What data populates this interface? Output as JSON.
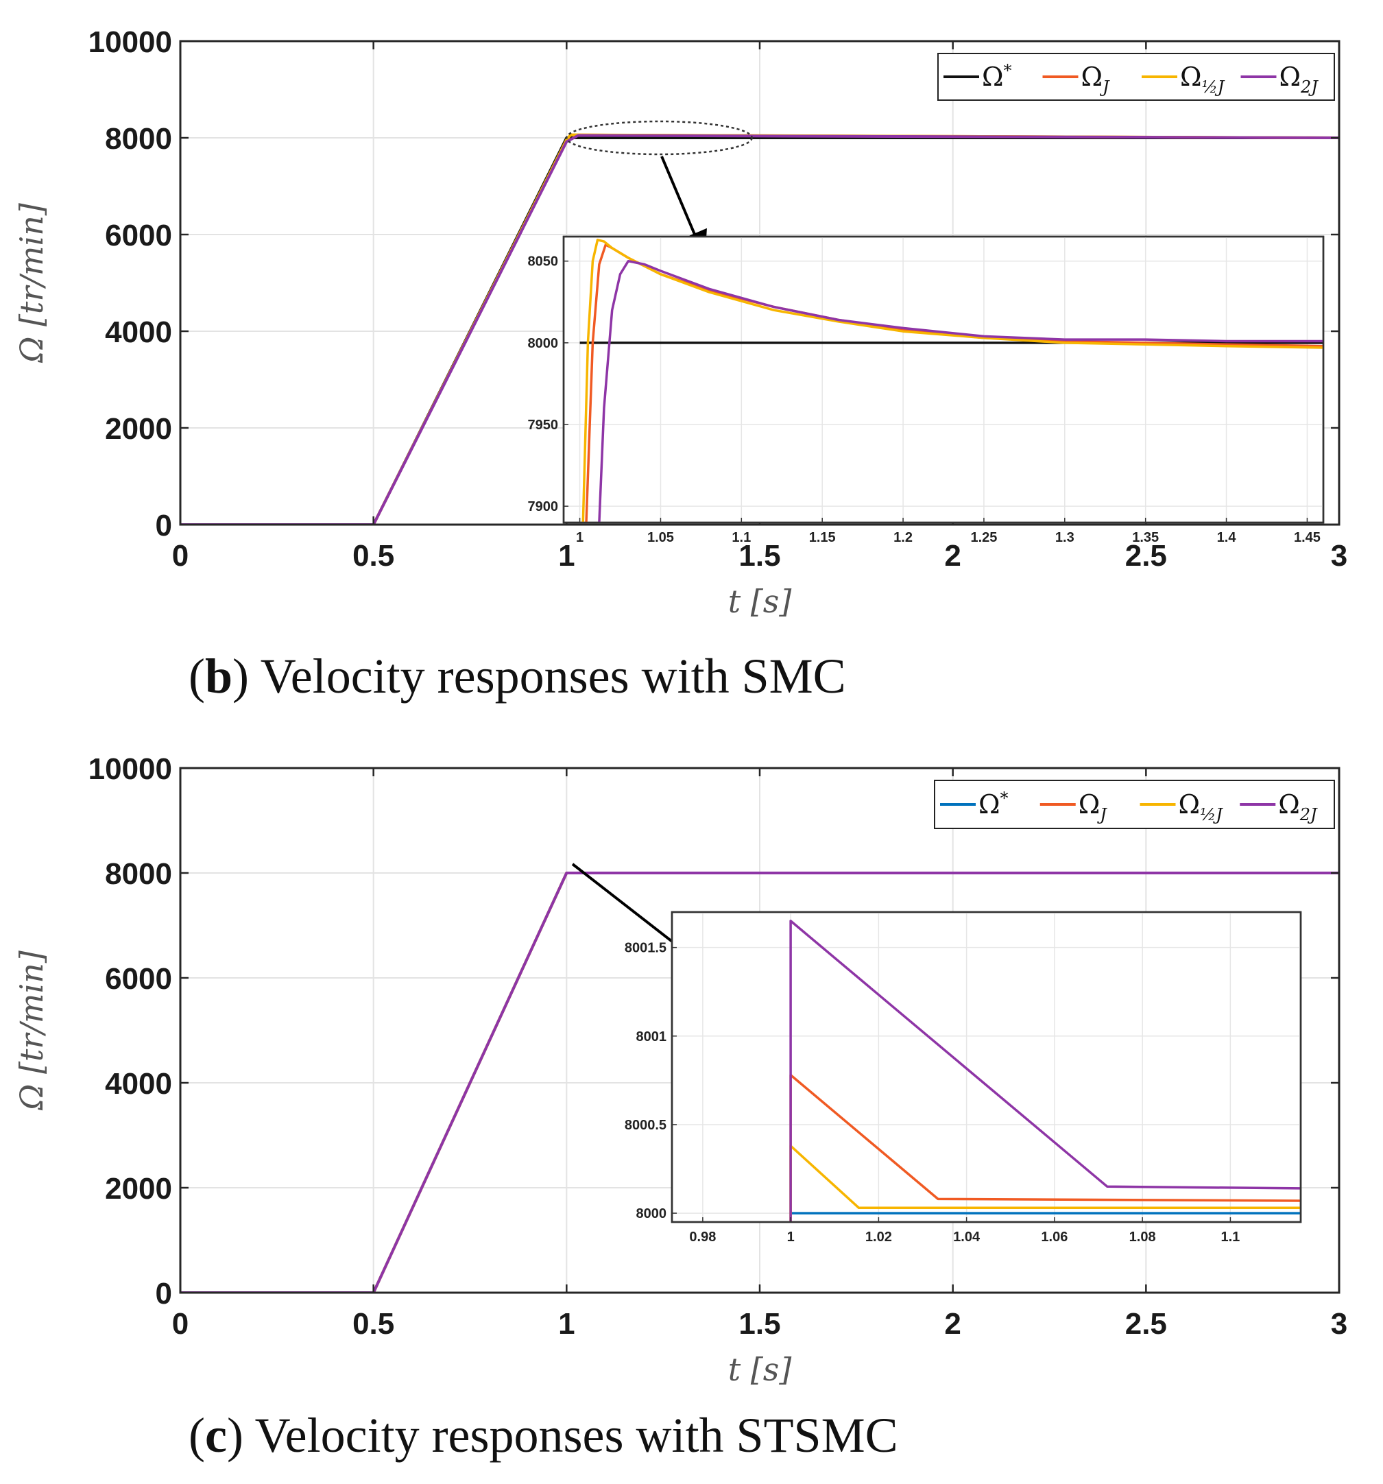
{
  "figure": {
    "captions": [
      {
        "letter": "b",
        "text": "Velocity responses with SMC"
      },
      {
        "letter": "c",
        "text": "Velocity responses with STSMC"
      }
    ]
  },
  "chart_data": [
    {
      "id": "b",
      "type": "line",
      "xlabel": "t [s]",
      "ylabel": "Ω [tr/min]",
      "xlim": [
        0,
        3
      ],
      "ylim": [
        0,
        10000
      ],
      "xticks": [
        0,
        0.5,
        1,
        1.5,
        2,
        2.5,
        3
      ],
      "xtick_labels": [
        "0",
        "0.5",
        "1",
        "1.5",
        "2",
        "2.5",
        "3"
      ],
      "yticks": [
        0,
        2000,
        4000,
        6000,
        8000,
        10000
      ],
      "ytick_labels": [
        "0",
        "2000",
        "4000",
        "6000",
        "8000",
        "10000"
      ],
      "grid": true,
      "legend_position": "top-right",
      "series": [
        {
          "name": "Ω*",
          "label_main": "Ω",
          "label_sup": "*",
          "label_sub": "",
          "color": "#111111",
          "x": [
            0,
            0.5,
            1,
            3
          ],
          "y": [
            0,
            0,
            8000,
            8000
          ]
        },
        {
          "name": "Ω_J",
          "label_main": "Ω",
          "label_sup": "",
          "label_sub": "J",
          "color": "#f05a23",
          "x": [
            0,
            0.5,
            1,
            1.01,
            3
          ],
          "y": [
            0,
            0,
            7950,
            8060,
            8000
          ]
        },
        {
          "name": "Ω_½J",
          "label_main": "Ω",
          "label_sup": "",
          "label_sub": "½J",
          "color": "#f7b500",
          "x": [
            0,
            0.5,
            1,
            1.01,
            3
          ],
          "y": [
            0,
            0,
            7960,
            8062,
            8000
          ]
        },
        {
          "name": "Ω_2J",
          "label_main": "Ω",
          "label_sup": "",
          "label_sub": "2J",
          "color": "#8e35a6",
          "x": [
            0,
            0.5,
            1,
            1.03,
            3
          ],
          "y": [
            0,
            0,
            7920,
            8050,
            8000
          ]
        }
      ],
      "inset": {
        "xlim": [
          0.99,
          1.46
        ],
        "ylim": [
          7890,
          8065
        ],
        "xticks": [
          1,
          1.05,
          1.1,
          1.15,
          1.2,
          1.25,
          1.3,
          1.35,
          1.4,
          1.45
        ],
        "xtick_labels": [
          "1",
          "1.05",
          "1.1",
          "1.15",
          "1.2",
          "1.25",
          "1.3",
          "1.35",
          "1.4",
          "1.45"
        ],
        "yticks": [
          7900,
          7950,
          8000,
          8050
        ],
        "ytick_labels": [
          "7900",
          "7950",
          "8000",
          "8050"
        ],
        "zoom_region": {
          "x": [
            1.0,
            1.48
          ],
          "y": [
            8000,
            8060
          ]
        },
        "series": [
          {
            "name": "Ω*",
            "color": "#111111",
            "x": [
              1.0,
              1.46
            ],
            "y": [
              8000,
              8000
            ]
          },
          {
            "name": "Ω_J",
            "color": "#f05a23",
            "x": [
              1.004,
              1.008,
              1.012,
              1.016,
              1.02,
              1.03,
              1.05,
              1.08,
              1.12,
              1.16,
              1.2,
              1.25,
              1.3,
              1.35,
              1.4,
              1.46
            ],
            "y": [
              7890,
              8000,
              8048,
              8060,
              8058,
              8052,
              8042,
              8032,
              8022,
              8014,
              8008,
              8003,
              8001,
              8000,
              7999,
              7998
            ]
          },
          {
            "name": "Ω_½J",
            "color": "#f7b500",
            "x": [
              1.002,
              1.005,
              1.008,
              1.011,
              1.015,
              1.02,
              1.03,
              1.05,
              1.08,
              1.12,
              1.16,
              1.2,
              1.25,
              1.3,
              1.35,
              1.4,
              1.46
            ],
            "y": [
              7890,
              8000,
              8050,
              8063,
              8062,
              8058,
              8052,
              8042,
              8031,
              8020,
              8013,
              8007,
              8003,
              8000,
              7999,
              7998,
              7997
            ]
          },
          {
            "name": "Ω_2J",
            "color": "#8e35a6",
            "x": [
              1.012,
              1.015,
              1.02,
              1.025,
              1.03,
              1.04,
              1.05,
              1.08,
              1.12,
              1.16,
              1.2,
              1.25,
              1.3,
              1.35,
              1.4,
              1.46
            ],
            "y": [
              7890,
              7960,
              8020,
              8042,
              8050,
              8048,
              8044,
              8033,
              8022,
              8014,
              8009,
              8004,
              8002,
              8002,
              8001,
              8001
            ]
          }
        ]
      }
    },
    {
      "id": "c",
      "type": "line",
      "xlabel": "t [s]",
      "ylabel": "Ω [tr/min]",
      "xlim": [
        0,
        3
      ],
      "ylim": [
        0,
        10000
      ],
      "xticks": [
        0,
        0.5,
        1,
        1.5,
        2,
        2.5,
        3
      ],
      "xtick_labels": [
        "0",
        "0.5",
        "1",
        "1.5",
        "2",
        "2.5",
        "3"
      ],
      "yticks": [
        0,
        2000,
        4000,
        6000,
        8000,
        10000
      ],
      "ytick_labels": [
        "0",
        "2000",
        "4000",
        "6000",
        "8000",
        "10000"
      ],
      "grid": true,
      "legend_position": "top-right",
      "series": [
        {
          "name": "Ω*",
          "label_main": "Ω",
          "label_sup": "*",
          "label_sub": "",
          "color": "#0072bd",
          "x": [
            0,
            0.5,
            1,
            3
          ],
          "y": [
            0,
            0,
            8000,
            8000
          ]
        },
        {
          "name": "Ω_J",
          "label_main": "Ω",
          "label_sup": "",
          "label_sub": "J",
          "color": "#f05a23",
          "x": [
            0,
            0.5,
            1,
            3
          ],
          "y": [
            0,
            0,
            8000,
            8000
          ]
        },
        {
          "name": "Ω_½J",
          "label_main": "Ω",
          "label_sup": "",
          "label_sub": "½J",
          "color": "#f7b500",
          "x": [
            0,
            0.5,
            1,
            3
          ],
          "y": [
            0,
            0,
            8000,
            8000
          ]
        },
        {
          "name": "Ω_2J",
          "label_main": "Ω",
          "label_sup": "",
          "label_sub": "2J",
          "color": "#8e35a6",
          "x": [
            0,
            0.5,
            1,
            3
          ],
          "y": [
            0,
            0,
            8000,
            8000
          ]
        }
      ],
      "inset": {
        "xlim": [
          0.973,
          1.116
        ],
        "ylim": [
          7999.95,
          8001.7
        ],
        "xticks": [
          0.98,
          1,
          1.02,
          1.04,
          1.06,
          1.08,
          1.1
        ],
        "xtick_labels": [
          "0.98",
          "1",
          "1.02",
          "1.04",
          "1.06",
          "1.08",
          "1.1"
        ],
        "yticks": [
          8000,
          8000.5,
          8001,
          8001.5
        ],
        "ytick_labels": [
          "8000",
          "8000.5",
          "8001",
          "8001.5"
        ],
        "series": [
          {
            "name": "Ω*",
            "color": "#0072bd",
            "x": [
              1.0,
              1.116
            ],
            "y": [
              8000,
              8000
            ]
          },
          {
            "name": "Ω_J",
            "color": "#f05a23",
            "x": [
              1.0,
              1.0,
              1.0335,
              1.116
            ],
            "y": [
              7999.95,
              8000.78,
              8000.08,
              8000.07
            ]
          },
          {
            "name": "Ω_½J",
            "color": "#f7b500",
            "x": [
              1.0,
              1.0,
              1.0155,
              1.116
            ],
            "y": [
              7999.95,
              8000.38,
              8000.03,
              8000.03
            ]
          },
          {
            "name": "Ω_2J",
            "color": "#8e35a6",
            "x": [
              1.0,
              1.0,
              1.072,
              1.116
            ],
            "y": [
              7999.95,
              8001.65,
              8000.15,
              8000.14
            ]
          }
        ]
      }
    }
  ]
}
